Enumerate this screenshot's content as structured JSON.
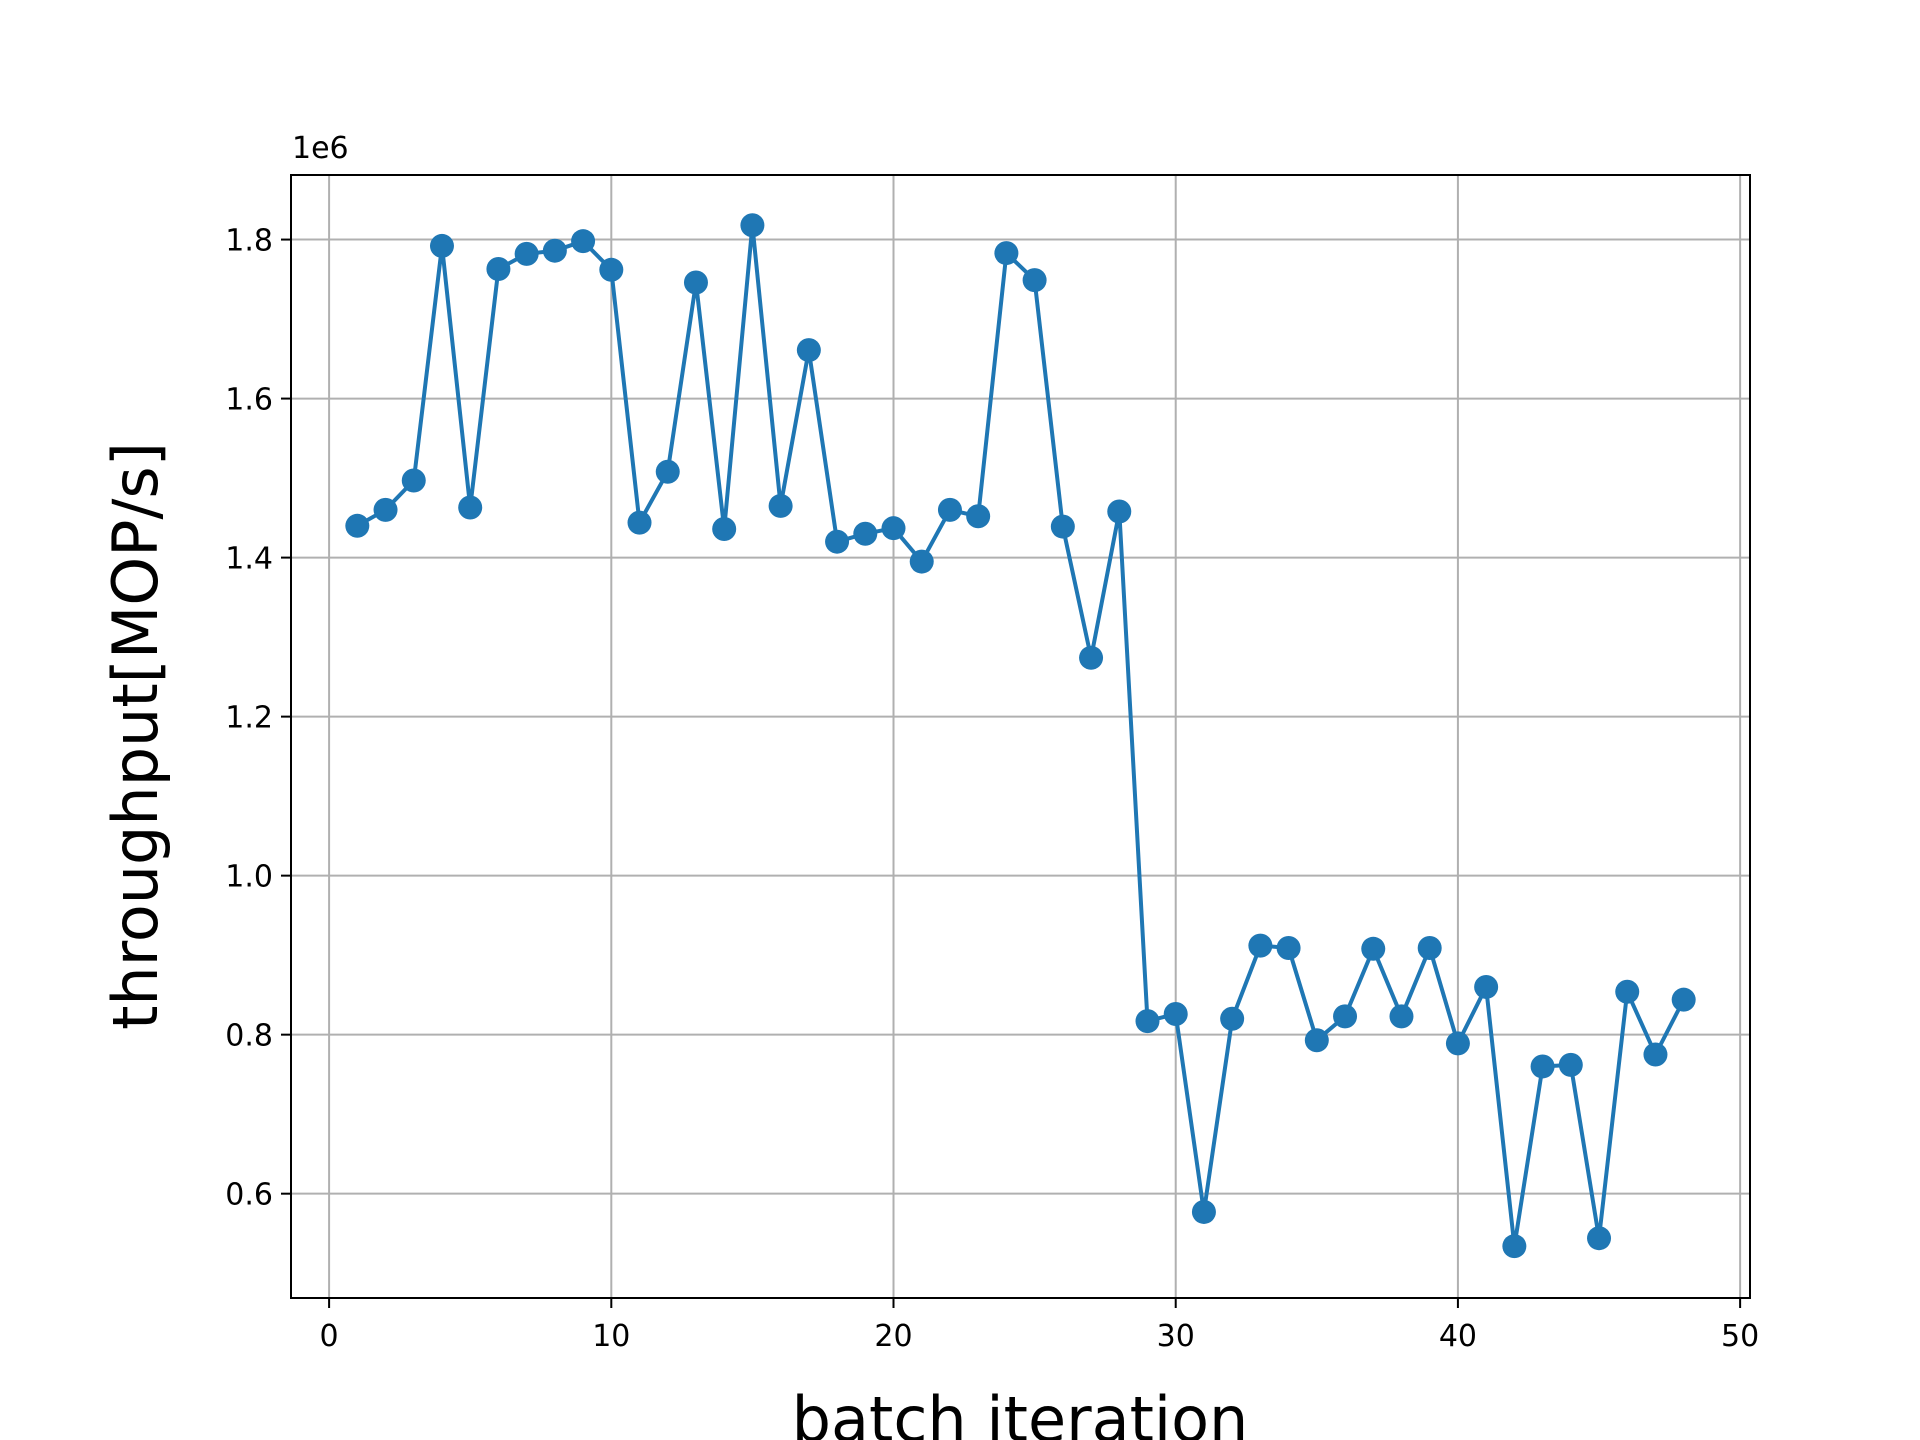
{
  "chart_data": {
    "type": "line",
    "title": "",
    "xlabel": "batch iteration",
    "ylabel": "throughput[MOP/s]",
    "y_offset_label": "1e6",
    "xlim": [
      -1.35,
      50.35
    ],
    "ylim": [
      0.4688,
      1.8812
    ],
    "y_scale_multiplier": 1000000,
    "grid": true,
    "legend": "none",
    "x_ticks": [
      0,
      10,
      20,
      30,
      40,
      50
    ],
    "x_tick_labels": [
      "0",
      "10",
      "20",
      "30",
      "40",
      "50"
    ],
    "y_ticks": [
      0.6,
      0.8,
      1.0,
      1.2,
      1.4,
      1.6,
      1.8
    ],
    "y_tick_labels": [
      "0.6",
      "0.8",
      "1.0",
      "1.2",
      "1.4",
      "1.6",
      "1.8"
    ],
    "series": [
      {
        "color": "#1f77b4",
        "marker": "circle",
        "x": [
          1,
          2,
          3,
          4,
          5,
          6,
          7,
          8,
          9,
          10,
          11,
          12,
          13,
          14,
          15,
          16,
          17,
          18,
          19,
          20,
          21,
          22,
          23,
          24,
          25,
          26,
          27,
          28,
          29,
          30,
          31,
          32,
          33,
          34,
          35,
          36,
          37,
          38,
          39,
          40,
          41,
          42,
          43,
          44,
          45,
          46,
          47,
          48
        ],
        "y": [
          1.44,
          1.46,
          1.497,
          1.792,
          1.463,
          1.763,
          1.782,
          1.786,
          1.798,
          1.762,
          1.444,
          1.508,
          1.746,
          1.436,
          1.818,
          1.465,
          1.661,
          1.42,
          1.43,
          1.437,
          1.395,
          1.46,
          1.452,
          1.783,
          1.749,
          1.439,
          1.274,
          1.458,
          0.817,
          0.826,
          0.577,
          0.82,
          0.912,
          0.909,
          0.793,
          0.823,
          0.908,
          0.823,
          0.909,
          0.789,
          0.86,
          0.534,
          0.76,
          0.762,
          0.544,
          0.854,
          0.775,
          0.844
        ]
      }
    ]
  }
}
